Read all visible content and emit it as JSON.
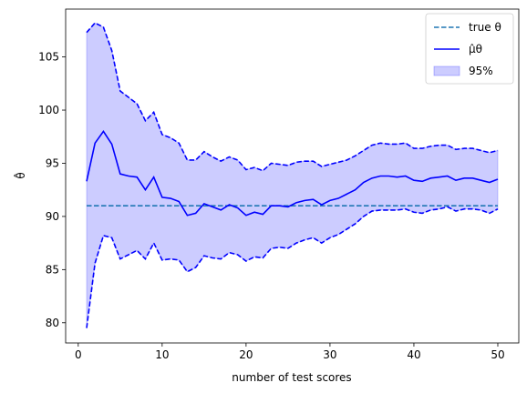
{
  "chart_data": {
    "type": "line",
    "xlabel": "number of test scores",
    "ylabel": "θ̂",
    "xlim": [
      -1.5,
      52.5
    ],
    "ylim": [
      78.1,
      109.5
    ],
    "xticks": [
      0,
      10,
      20,
      30,
      40,
      50
    ],
    "yticks": [
      80,
      85,
      90,
      95,
      100,
      105
    ],
    "grid": false,
    "legend_position": "top-right",
    "true_theta": 91.0,
    "legend": [
      {
        "key": "true",
        "label": "true θ",
        "color": "#1f77b4",
        "style": "dashed"
      },
      {
        "key": "mu",
        "label": "μ̂θ",
        "color": "#0000ff",
        "style": "solid"
      },
      {
        "key": "band",
        "label": "95%",
        "color": "#0000ff",
        "style": "fill"
      }
    ],
    "x": [
      1,
      2,
      3,
      4,
      5,
      6,
      7,
      8,
      9,
      10,
      11,
      12,
      13,
      14,
      15,
      16,
      17,
      18,
      19,
      20,
      21,
      22,
      23,
      24,
      25,
      26,
      27,
      28,
      29,
      30,
      31,
      32,
      33,
      34,
      35,
      36,
      37,
      38,
      39,
      40,
      41,
      42,
      43,
      44,
      45,
      46,
      47,
      48,
      49,
      50
    ],
    "series": [
      {
        "name": "μ̂θ",
        "values": [
          93.3,
          96.9,
          98.0,
          96.8,
          94.0,
          93.8,
          93.7,
          92.5,
          93.7,
          91.8,
          91.7,
          91.4,
          90.1,
          90.3,
          91.2,
          90.9,
          90.6,
          91.1,
          90.8,
          90.1,
          90.4,
          90.2,
          91.0,
          91.0,
          90.9,
          91.3,
          91.5,
          91.6,
          91.1,
          91.5,
          91.7,
          92.1,
          92.5,
          93.2,
          93.6,
          93.8,
          93.8,
          93.7,
          93.8,
          93.4,
          93.3,
          93.6,
          93.7,
          93.8,
          93.4,
          93.6,
          93.6,
          93.4,
          93.2,
          93.5
        ]
      },
      {
        "name": "upper",
        "values": [
          107.3,
          108.2,
          107.8,
          105.6,
          101.8,
          101.2,
          100.6,
          99.0,
          99.8,
          97.7,
          97.4,
          96.9,
          95.3,
          95.3,
          96.1,
          95.6,
          95.2,
          95.6,
          95.3,
          94.4,
          94.6,
          94.3,
          95.0,
          94.9,
          94.8,
          95.1,
          95.2,
          95.2,
          94.7,
          94.9,
          95.1,
          95.3,
          95.7,
          96.2,
          96.7,
          96.9,
          96.8,
          96.8,
          96.9,
          96.4,
          96.4,
          96.6,
          96.7,
          96.7,
          96.3,
          96.4,
          96.4,
          96.2,
          96.0,
          96.2
        ]
      },
      {
        "name": "lower",
        "values": [
          79.5,
          85.6,
          88.2,
          88.0,
          86.0,
          86.4,
          86.8,
          86.0,
          87.5,
          85.9,
          86.0,
          85.9,
          84.8,
          85.2,
          86.3,
          86.1,
          86.0,
          86.6,
          86.4,
          85.8,
          86.2,
          86.1,
          87.0,
          87.1,
          87.0,
          87.5,
          87.8,
          88.0,
          87.5,
          88.0,
          88.3,
          88.8,
          89.3,
          90.0,
          90.5,
          90.6,
          90.6,
          90.6,
          90.7,
          90.4,
          90.3,
          90.6,
          90.7,
          90.9,
          90.5,
          90.7,
          90.7,
          90.6,
          90.3,
          90.7
        ]
      }
    ]
  }
}
